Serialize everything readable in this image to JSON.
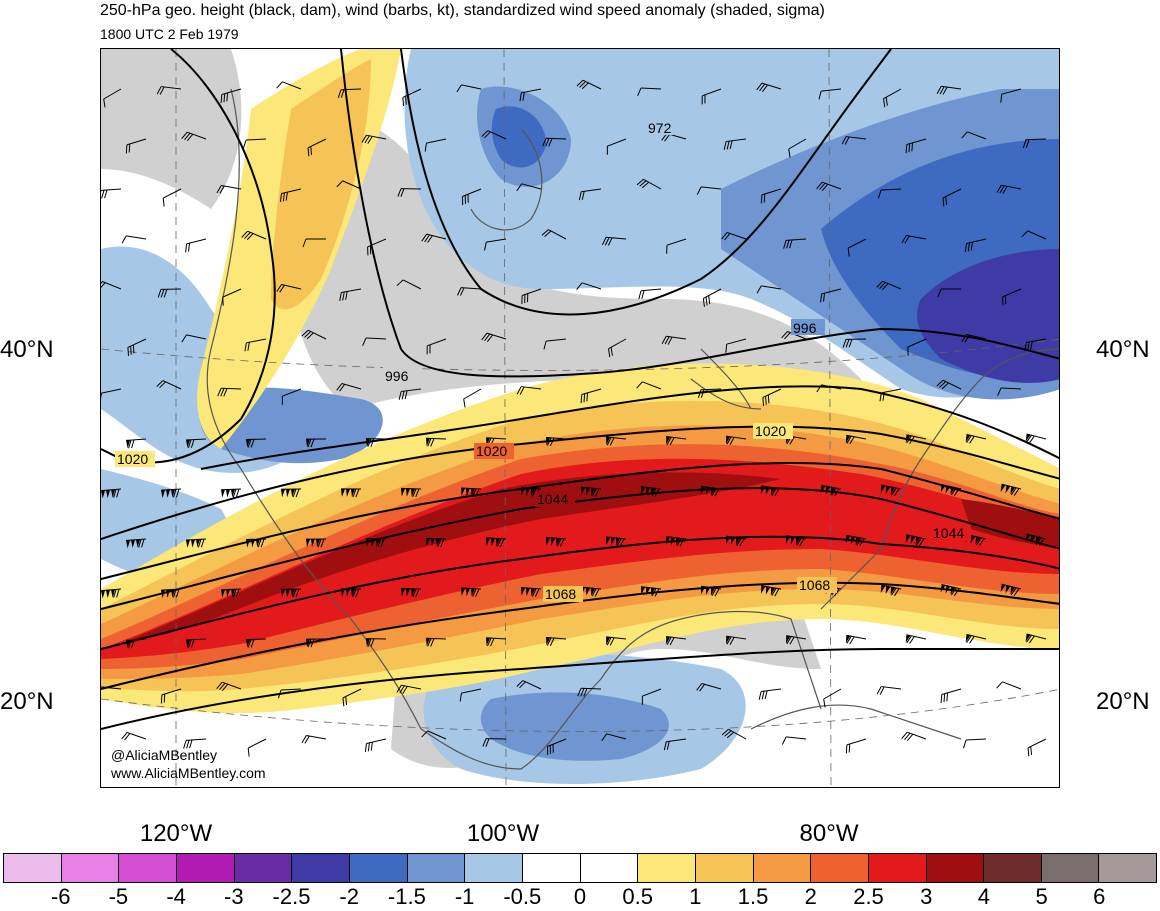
{
  "title": "250-hPa geo. height (black, dam), wind (barbs, kt), standardized wind speed anomaly (shaded, sigma)",
  "subtitle": "1800 UTC 2 Feb 1979",
  "credits": [
    "@AliciaMBentley",
    "www.AliciaMBentley.com"
  ],
  "lat_labels": [
    "40°N",
    "20°N"
  ],
  "lon_labels": [
    "120°W",
    "100°W",
    "80°W"
  ],
  "contour_labels": [
    "972",
    "996",
    "996",
    "1020",
    "1020",
    "1020",
    "1044",
    "1044",
    "1068",
    "1068"
  ],
  "colorbar": {
    "labels": [
      "-6",
      "-5",
      "-4",
      "-3",
      "-2.5",
      "-2",
      "-1.5",
      "-1",
      "-0.5",
      "0",
      "0.5",
      "1",
      "1.5",
      "2",
      "2.5",
      "3",
      "4",
      "5",
      "6"
    ],
    "colors": [
      "#ecbdec",
      "#e680e6",
      "#d44fd4",
      "#b21ab4",
      "#6a2ca5",
      "#3e3aa6",
      "#3e6ac2",
      "#6f96d1",
      "#a7c7e6",
      "#ffffff",
      "#ffffff",
      "#fbe878",
      "#f6c356",
      "#f39a43",
      "#ee6232",
      "#e31a1c",
      "#a00f10",
      "#6e2b2b",
      "#7a6e6e",
      "#a59a9a"
    ]
  },
  "colors": {
    "land_gray": "#d0d0d0",
    "contour": "#000000",
    "coast": "#555555"
  }
}
